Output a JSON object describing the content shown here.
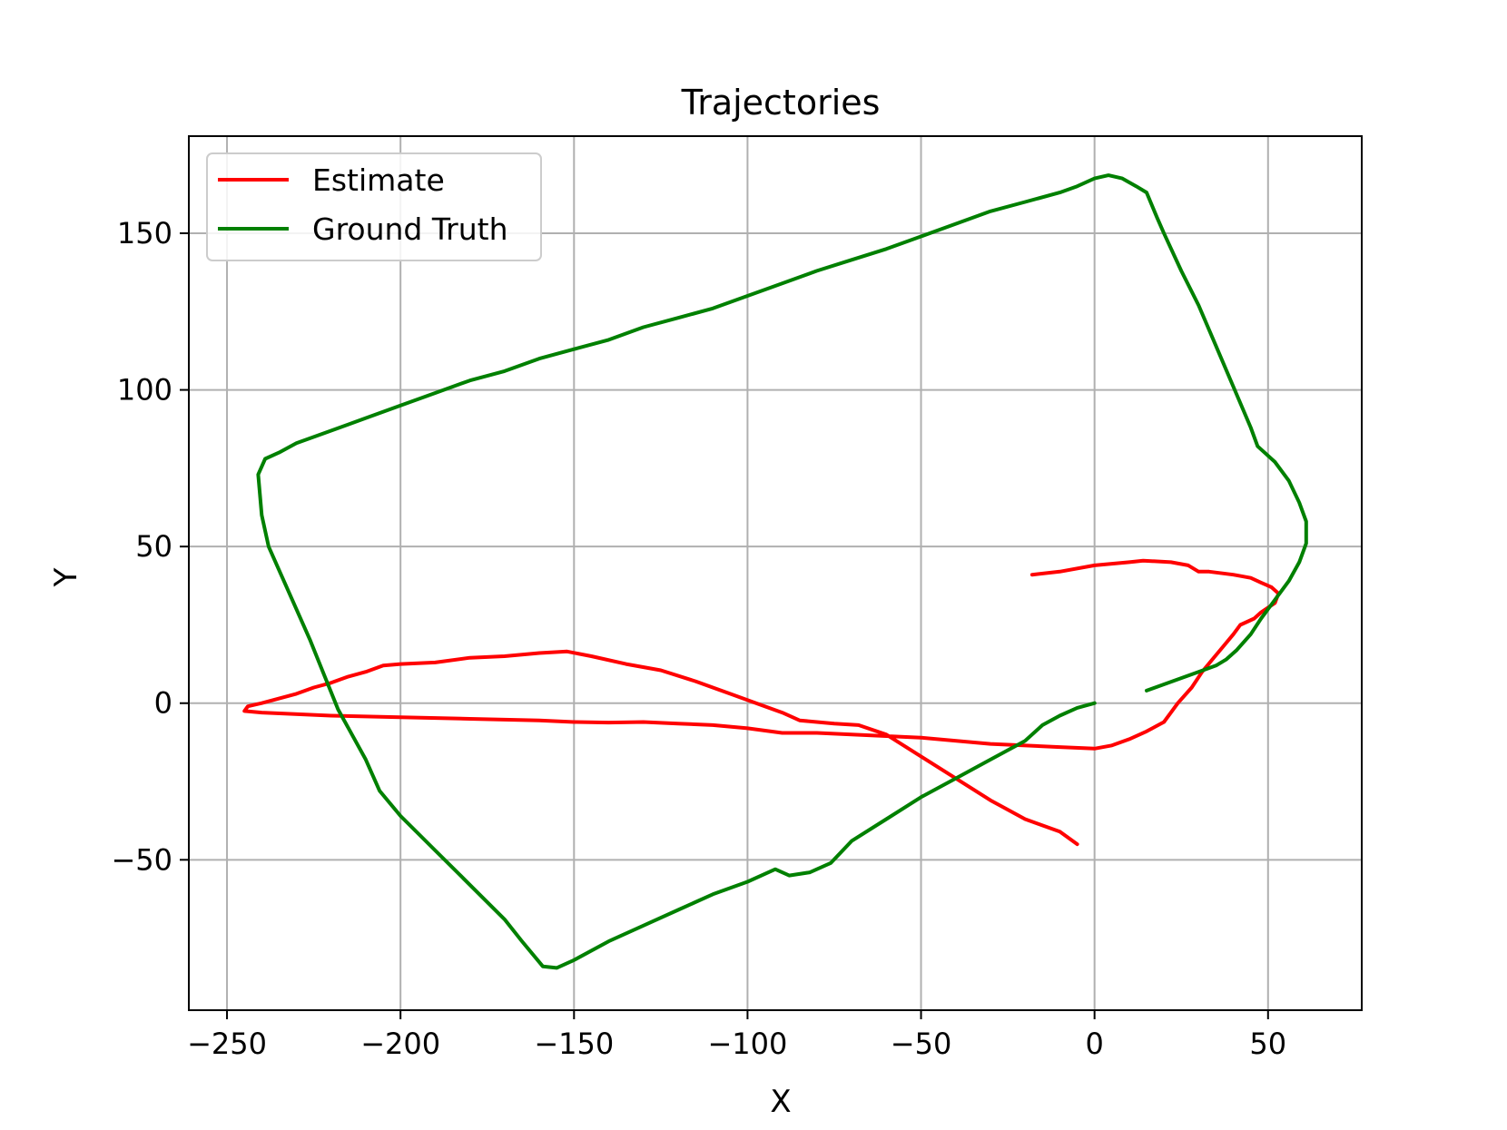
{
  "chart_data": {
    "type": "line",
    "title": "Trajectories",
    "xlabel": "X",
    "ylabel": "Y",
    "xlim": [
      -261,
      77
    ],
    "ylim": [
      -98,
      181
    ],
    "xticks": [
      -250,
      -200,
      -150,
      -100,
      -50,
      0,
      50
    ],
    "xtick_labels": [
      "−250",
      "−200",
      "−150",
      "−100",
      "−50",
      "0",
      "50"
    ],
    "yticks": [
      -50,
      0,
      50,
      100,
      150
    ],
    "ytick_labels": [
      "−50",
      "0",
      "50",
      "100",
      "150"
    ],
    "grid": true,
    "legend_position": "upper-left",
    "series": [
      {
        "name": "Estimate",
        "color": "#ff0000",
        "x": [
          -18,
          -10,
          0,
          10,
          14,
          22,
          27,
          30,
          33,
          40,
          45,
          48,
          51,
          53,
          52,
          48,
          46,
          42,
          40,
          37,
          34,
          31,
          28,
          24,
          22,
          20,
          15,
          10,
          5,
          0,
          -10,
          -30,
          -50,
          -60,
          -70,
          -80,
          -90,
          -100,
          -110,
          -120,
          -130,
          -140,
          -150,
          -160,
          -180,
          -200,
          -220,
          -240,
          -245,
          -244,
          -240,
          -235,
          -230,
          -225,
          -220,
          -215,
          -210,
          -205,
          -200,
          -190,
          -180,
          -170,
          -160,
          -152,
          -145,
          -135,
          -125,
          -115,
          -105,
          -95,
          -90,
          -85,
          -80,
          -75,
          -68,
          -60,
          -50,
          -40,
          -30,
          -20,
          -10,
          -5
        ],
        "y": [
          41,
          42,
          44,
          45,
          45.5,
          45,
          44,
          42,
          42,
          41,
          40,
          38.5,
          37,
          35,
          32,
          29,
          27,
          25,
          22,
          18,
          14,
          10,
          5,
          0,
          -3,
          -6,
          -9,
          -11.5,
          -13.5,
          -14.5,
          -14,
          -13,
          -11,
          -10.5,
          -10,
          -9.5,
          -9.5,
          -8,
          -7,
          -6.5,
          -6,
          -6.2,
          -6,
          -5.5,
          -5,
          -4.5,
          -4,
          -3,
          -2.5,
          -1,
          0,
          1.5,
          3,
          5,
          6.5,
          8.5,
          10,
          12,
          12.5,
          13,
          14.5,
          15,
          16,
          16.5,
          15,
          12.5,
          10.5,
          7,
          3,
          -1,
          -3,
          -5.5,
          -6,
          -6.5,
          -7,
          -10,
          -17,
          -24,
          -31,
          -37,
          -41,
          -45
        ]
      },
      {
        "name": "Ground Truth",
        "color": "#008000",
        "x": [
          0,
          -5,
          -10,
          -15,
          -20,
          -30,
          -40,
          -50,
          -60,
          -70,
          -76,
          -82,
          -88,
          -92,
          -100,
          -110,
          -120,
          -130,
          -140,
          -150,
          -155,
          -159,
          -165,
          -170,
          -180,
          -190,
          -200,
          -206,
          -210,
          -214,
          -218,
          -222,
          -226,
          -230,
          -234,
          -238,
          -240,
          -241,
          -239,
          -235,
          -230,
          -220,
          -210,
          -200,
          -190,
          -180,
          -170,
          -160,
          -150,
          -140,
          -130,
          -120,
          -110,
          -100,
          -90,
          -80,
          -70,
          -60,
          -50,
          -40,
          -30,
          -20,
          -10,
          -5,
          0,
          4,
          8,
          12,
          15,
          18,
          20,
          25,
          30,
          35,
          40,
          45,
          47,
          52,
          56,
          59,
          61,
          61,
          59,
          56,
          52,
          48,
          45,
          41,
          38,
          35,
          30,
          25,
          20,
          15
        ],
        "y": [
          0,
          -1.5,
          -4,
          -7,
          -12,
          -18,
          -24,
          -30,
          -37,
          -44,
          -51,
          -54,
          -55,
          -53,
          -57,
          -61,
          -66,
          -71,
          -76,
          -82,
          -84.5,
          -84,
          -76,
          -69,
          -58,
          -47,
          -36,
          -28,
          -18,
          -10,
          -2,
          9,
          20,
          30,
          40,
          50,
          60,
          73,
          78,
          80,
          83,
          87,
          91,
          95,
          99,
          103,
          106,
          110,
          113,
          116,
          120,
          123,
          126,
          130,
          134,
          138,
          141.5,
          145,
          149,
          153,
          157,
          160,
          163,
          165,
          167.5,
          168.5,
          167.5,
          165,
          163,
          155,
          150,
          138,
          127,
          114,
          101,
          88,
          82,
          77,
          71,
          64,
          58,
          51,
          45,
          39,
          33,
          27,
          22,
          17,
          14,
          12,
          10,
          8,
          6,
          4
        ]
      }
    ]
  }
}
